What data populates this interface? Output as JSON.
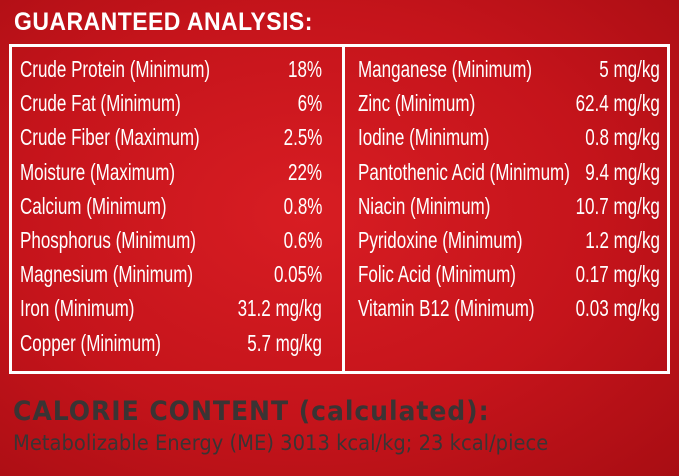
{
  "header": {
    "title": "GUARANTEED ANALYSIS:"
  },
  "table": {
    "left": [
      [
        "Crude Protein (Minimum)",
        "18%"
      ],
      [
        "Crude Fat (Minimum)",
        "6%"
      ],
      [
        "Crude Fiber (Maximum)",
        "2.5%"
      ],
      [
        "Moisture (Maximum)",
        "22%"
      ],
      [
        "Calcium (Minimum)",
        "0.8%"
      ],
      [
        "Phosphorus (Minimum)",
        "0.6%"
      ],
      [
        "Magnesium (Minimum)",
        "0.05%"
      ],
      [
        "Iron (Minimum)",
        "31.2 mg/kg"
      ],
      [
        "Copper (Minimum)",
        "5.7 mg/kg"
      ]
    ],
    "right": [
      [
        "Manganese (Minimum)",
        "5 mg/kg"
      ],
      [
        "Zinc (Minimum)",
        "62.4 mg/kg"
      ],
      [
        "Iodine (Minimum)",
        "0.8 mg/kg"
      ],
      [
        "Pantothenic Acid (Minimum)",
        "9.4 mg/kg"
      ],
      [
        "Niacin (Minimum)",
        "10.7 mg/kg"
      ],
      [
        "Pyridoxine (Minimum)",
        "1.2 mg/kg"
      ],
      [
        "Folic Acid (Minimum)",
        "0.17 mg/kg"
      ],
      [
        "Vitamin B12 (Minimum)",
        "0.03 mg/kg"
      ]
    ]
  },
  "calorie": {
    "title": "CALORIE CONTENT (calculated):",
    "text": "Metabolizable Energy (ME) 3013 kcal/kg; 23 kcal/piece"
  }
}
